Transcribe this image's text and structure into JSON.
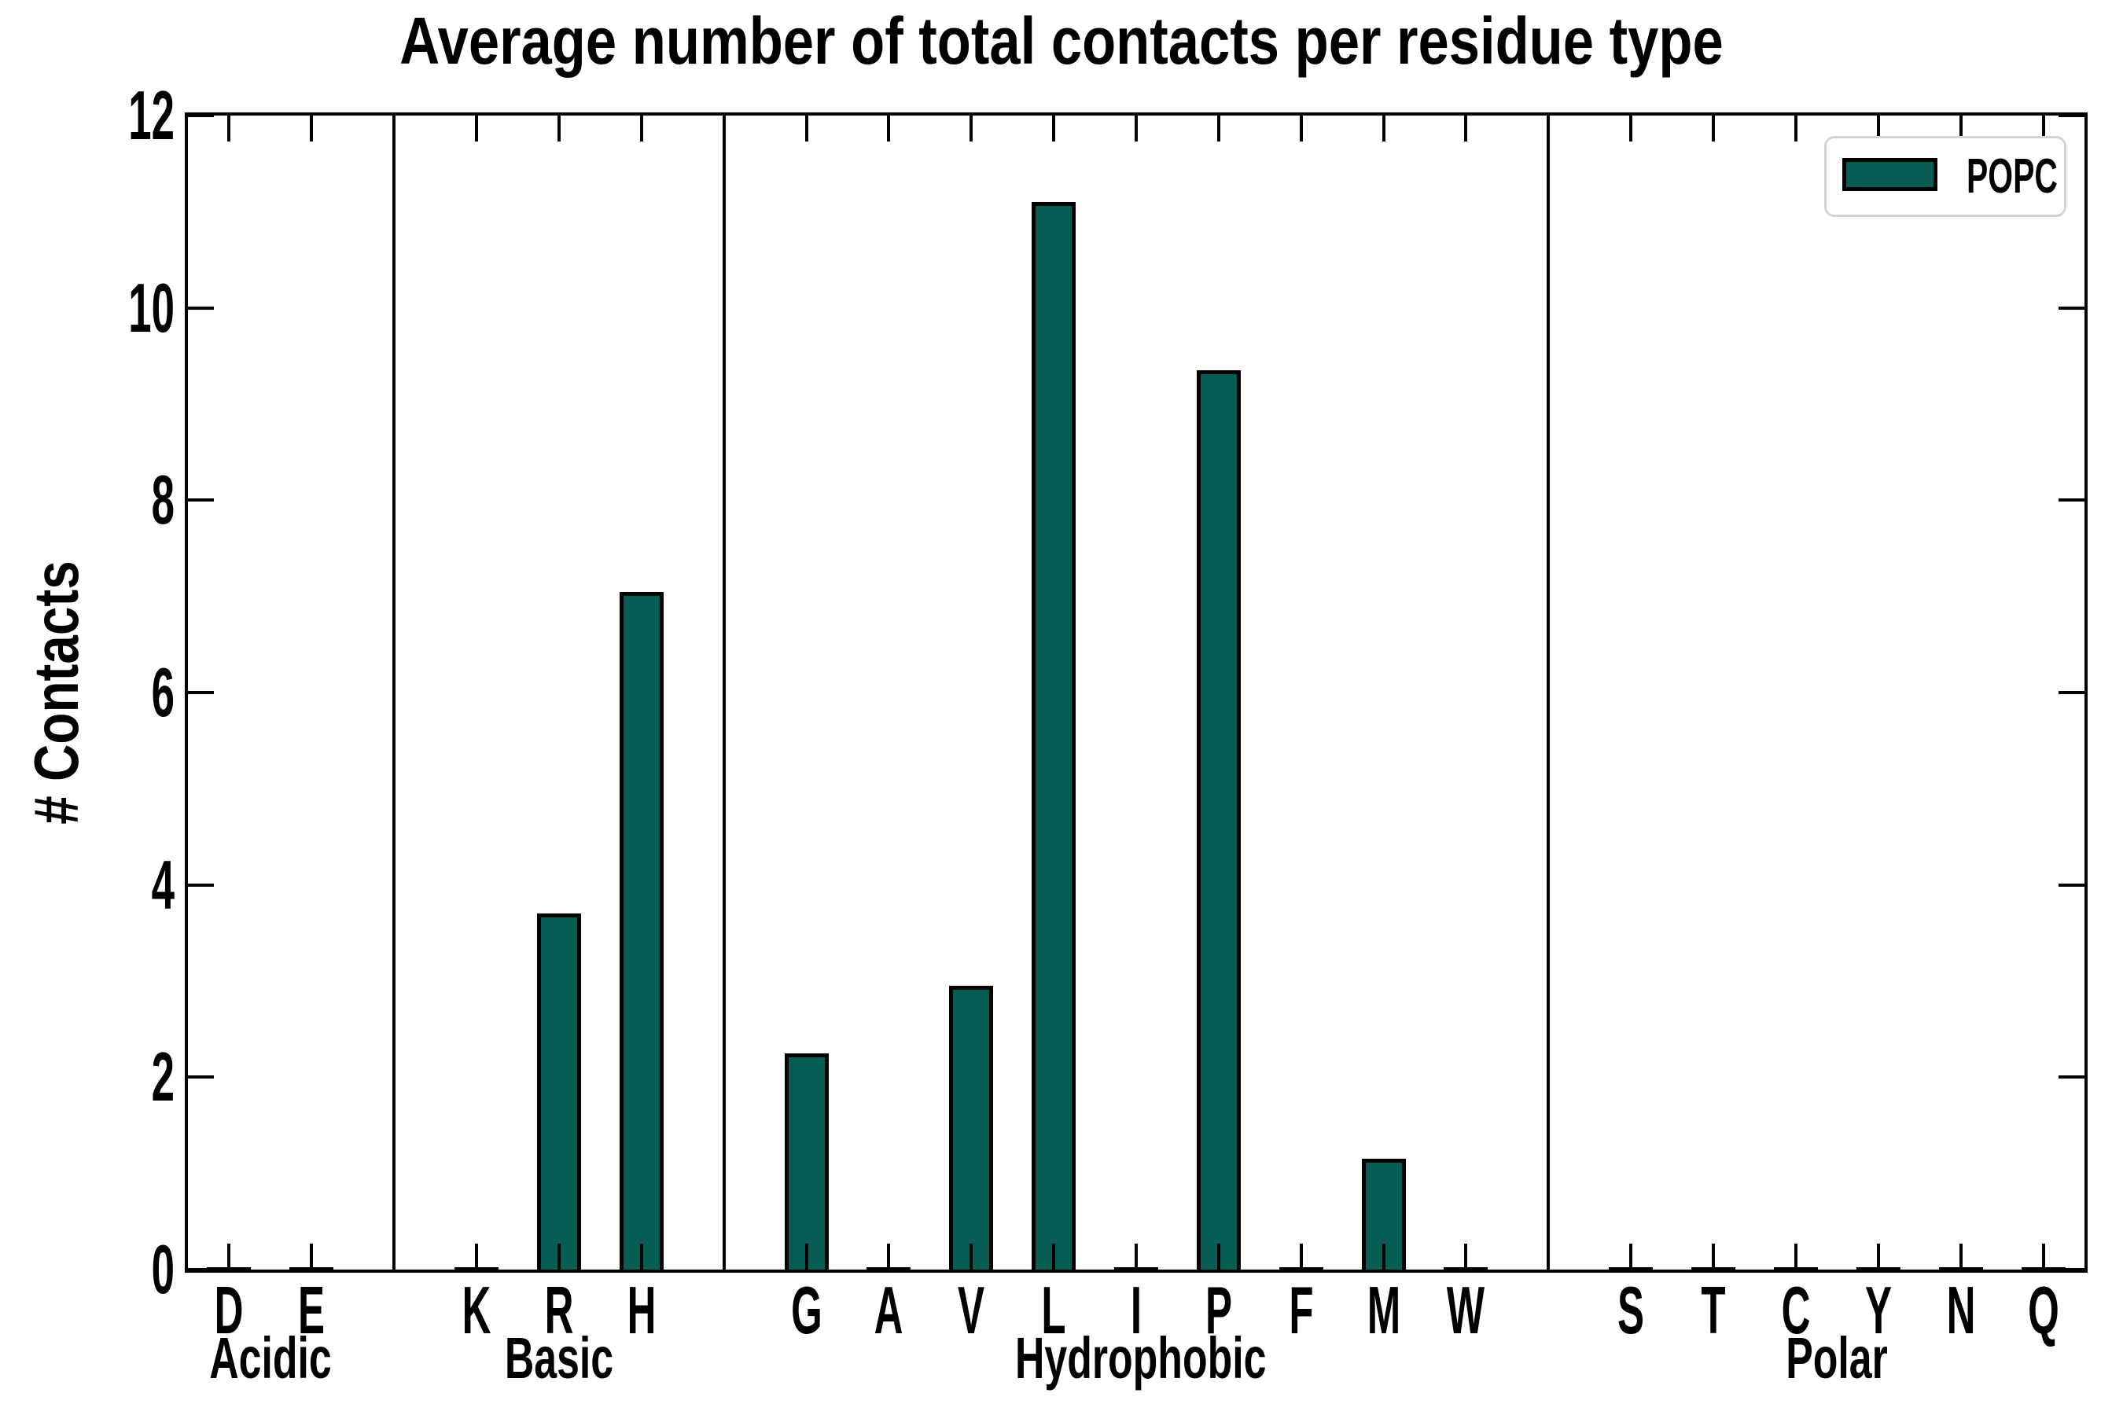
{
  "chart_data": {
    "type": "bar",
    "title": "Average number of total contacts per residue type",
    "ylabel": "# Contacts",
    "xlabel": "",
    "ylim": [
      0,
      12
    ],
    "yticks": [
      0,
      2,
      4,
      6,
      8,
      10,
      12
    ],
    "grid": false,
    "legend": {
      "label": "POPC",
      "position": "upper right"
    },
    "colors": {
      "bar_fill": "#085d52",
      "bar_edge": "#000000",
      "axis": "#000000",
      "legend_edge": "#d3d3d3"
    },
    "groups": [
      {
        "label": "Acidic",
        "residues": [
          "D",
          "E"
        ],
        "values": [
          0,
          0
        ]
      },
      {
        "label": "Basic",
        "residues": [
          "K",
          "R",
          "H"
        ],
        "values": [
          0,
          3.7,
          7.05
        ]
      },
      {
        "label": "Hydrophobic",
        "residues": [
          "G",
          "A",
          "V",
          "L",
          "I",
          "P",
          "F",
          "M",
          "W"
        ],
        "values": [
          2.25,
          0,
          2.95,
          11.1,
          0,
          9.35,
          0,
          1.15,
          0
        ]
      },
      {
        "label": "Polar",
        "residues": [
          "S",
          "T",
          "C",
          "Y",
          "N",
          "Q"
        ],
        "values": [
          0,
          0,
          0,
          0,
          0,
          0
        ]
      }
    ]
  }
}
